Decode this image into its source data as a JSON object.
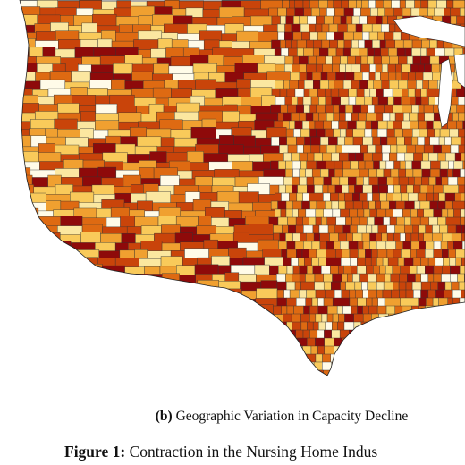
{
  "subcaption": {
    "label": "(b)",
    "text": "Geographic Variation in Capacity Decline"
  },
  "figure_caption": {
    "label": "Figure 1:",
    "text": "Contraction in the Nursing Home Indus"
  }
}
